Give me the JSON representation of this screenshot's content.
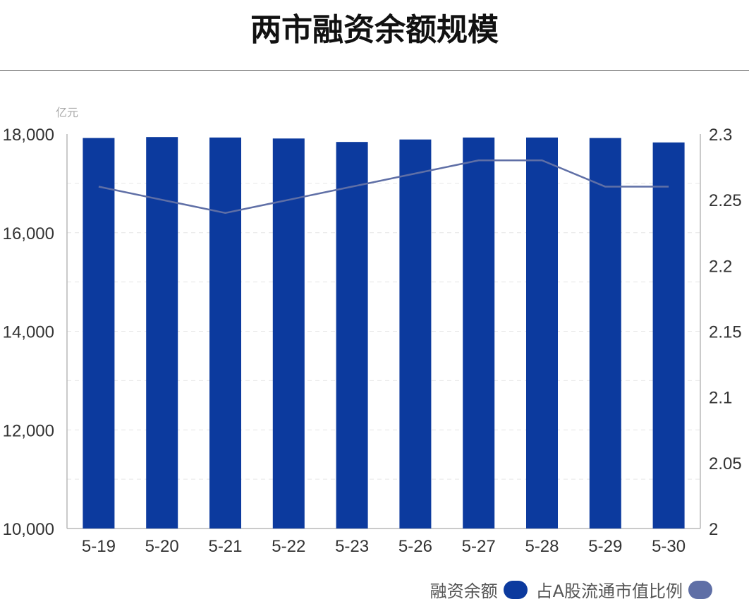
{
  "colors": {
    "bar": "#0c3a9e",
    "line": "#5f6fa6",
    "axis": "#b8b8b8",
    "grid": "#e6e6e6",
    "text": "#333333"
  },
  "chart_data": {
    "type": "bar",
    "title": "两市融资余额规模",
    "y_unit_label": "亿元",
    "categories": [
      "5-19",
      "5-20",
      "5-21",
      "5-22",
      "5-23",
      "5-26",
      "5-27",
      "5-28",
      "5-29",
      "5-30"
    ],
    "series": [
      {
        "name": "融资余额",
        "type": "bar",
        "axis": "left",
        "values": [
          17920,
          17940,
          17930,
          17910,
          17840,
          17890,
          17930,
          17930,
          17920,
          17830
        ]
      },
      {
        "name": "占A股流通市值比例",
        "type": "line",
        "axis": "right",
        "values": [
          2.26,
          2.25,
          2.24,
          2.25,
          2.26,
          2.27,
          2.28,
          2.28,
          2.26,
          2.26
        ]
      }
    ],
    "left_axis": {
      "ylim": [
        10000,
        18000
      ],
      "ticks": [
        10000,
        12000,
        14000,
        16000,
        18000
      ],
      "tick_labels": [
        "10,000",
        "12,000",
        "14,000",
        "16,000",
        "18,000"
      ]
    },
    "right_axis": {
      "ylim": [
        2,
        2.3
      ],
      "ticks": [
        2,
        2.05,
        2.1,
        2.15,
        2.2,
        2.25,
        2.3
      ],
      "tick_labels": [
        "2",
        "2.05",
        "2.1",
        "2.15",
        "2.2",
        "2.25",
        "2.3"
      ]
    },
    "grid": true,
    "legend_position": "bottom-right"
  }
}
